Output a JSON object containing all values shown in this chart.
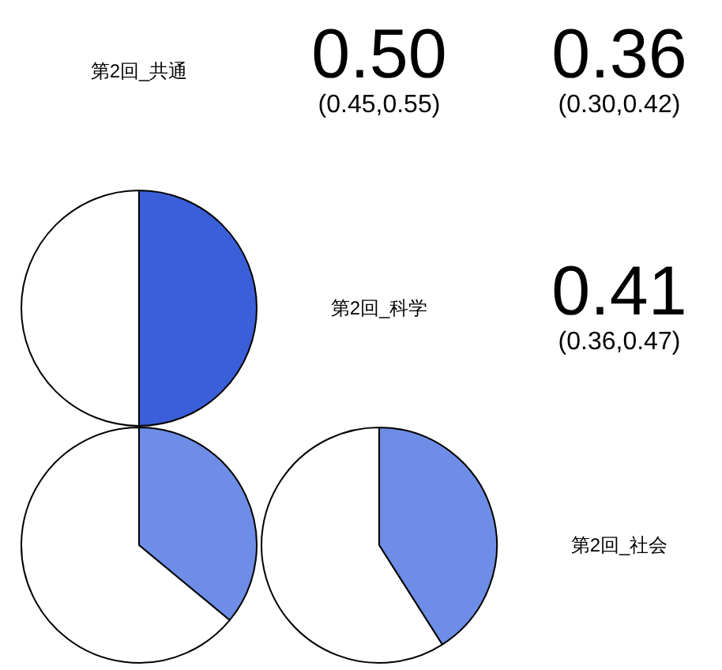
{
  "chart_data": [
    {
      "type": "other",
      "title": "第2回_共通"
    },
    {
      "type": "other",
      "annotations": [
        "0.50",
        "(0.45,0.55)"
      ]
    },
    {
      "type": "other",
      "annotations": [
        "0.36",
        "(0.30,0.42)"
      ]
    },
    {
      "type": "pie",
      "categories": [
        null,
        null
      ],
      "values": [
        50,
        50
      ],
      "colors": [
        "#3b5fd9",
        "#ffffff"
      ]
    },
    {
      "type": "other",
      "title": "第2回_科学"
    },
    {
      "type": "other",
      "annotations": [
        "0.41",
        "(0.36,0.47)"
      ]
    },
    {
      "type": "pie",
      "categories": [
        null,
        null
      ],
      "values": [
        36,
        64
      ],
      "colors": [
        "#6d8de6",
        "#ffffff"
      ]
    },
    {
      "type": "pie",
      "categories": [
        null,
        null
      ],
      "values": [
        41,
        59
      ],
      "colors": [
        "#6d8de6",
        "#ffffff"
      ]
    },
    {
      "type": "other",
      "title": "第2回_社会"
    }
  ]
}
